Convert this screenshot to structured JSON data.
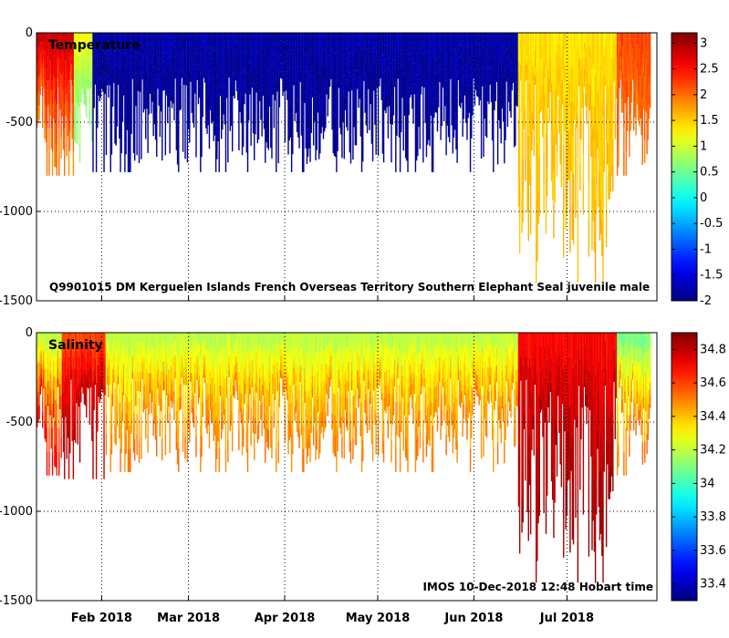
{
  "chart_data": [
    {
      "type": "heatmap",
      "name": "temperature",
      "title": "Temperature",
      "annotation": "Q9901015 DM Kerguelen Islands French Overseas Territory Southern Elephant Seal juvenile male",
      "ylim": [
        -1500,
        0
      ],
      "yticks": [
        0,
        -500,
        -1000,
        -1500
      ],
      "ytick_labels": [
        "0",
        "-500",
        "-1000",
        "-1500"
      ],
      "colorbar": {
        "range": [
          -2,
          3.2
        ],
        "ticks": [
          3,
          2.5,
          2,
          1.5,
          1,
          0.5,
          0,
          -0.5,
          -1,
          -1.5,
          -2
        ],
        "tick_labels": [
          "3",
          "2.5",
          "2",
          "1.5",
          "1",
          "0.5",
          "0",
          "-0.5",
          "-1",
          "-1.5",
          "-2"
        ]
      },
      "regimes": [
        {
          "start_day": 0,
          "end_day": 12,
          "surface_value": 2.8,
          "deep_value": 1.9,
          "max_depth": 800
        },
        {
          "start_day": 12,
          "end_day": 18,
          "surface_value": 1.2,
          "deep_value": 0.6,
          "max_depth": 820
        },
        {
          "start_day": 18,
          "end_day": 155,
          "surface_value": -1.8,
          "deep_value": -1.9,
          "max_depth": 780
        },
        {
          "start_day": 155,
          "end_day": 187,
          "surface_value": 1.4,
          "deep_value": 1.6,
          "max_depth": 1400
        },
        {
          "start_day": 187,
          "end_day": 198,
          "surface_value": 2.2,
          "deep_value": 2.0,
          "max_depth": 800
        }
      ]
    },
    {
      "type": "heatmap",
      "name": "salinity",
      "title": "Salinity",
      "annotation": "IMOS 10-Dec-2018 12:48 Hobart time",
      "ylim": [
        -1500,
        0
      ],
      "yticks": [
        0,
        -500,
        -1000,
        -1500
      ],
      "ytick_labels": [
        "0",
        "-500",
        "-1000",
        "-1500"
      ],
      "colorbar": {
        "range": [
          33.3,
          34.9
        ],
        "ticks": [
          34.8,
          34.6,
          34.4,
          34.2,
          34,
          33.8,
          33.6,
          33.4
        ],
        "tick_labels": [
          "34.8",
          "34.6",
          "34.4",
          "34.2",
          "34",
          "33.8",
          "33.6",
          "33.4"
        ]
      },
      "regimes": [
        {
          "start_day": 0,
          "end_day": 8,
          "surface_value": 34.2,
          "deep_value": 34.7,
          "max_depth": 800
        },
        {
          "start_day": 8,
          "end_day": 22,
          "surface_value": 34.6,
          "deep_value": 34.82,
          "max_depth": 820
        },
        {
          "start_day": 22,
          "end_day": 155,
          "surface_value": 34.2,
          "deep_value": 34.5,
          "max_depth": 780
        },
        {
          "start_day": 155,
          "end_day": 187,
          "surface_value": 34.7,
          "deep_value": 34.85,
          "max_depth": 1400
        },
        {
          "start_day": 187,
          "end_day": 198,
          "surface_value": 34.1,
          "deep_value": 34.5,
          "max_depth": 800
        }
      ]
    }
  ],
  "x_axis": {
    "start_date": "2018-01-11",
    "end_date": "2018-07-30",
    "total_days": 200,
    "ticks": [
      {
        "label": "Feb 2018",
        "day": 21
      },
      {
        "label": "Mar 2018",
        "day": 49
      },
      {
        "label": "Apr 2018",
        "day": 80
      },
      {
        "label": "May 2018",
        "day": 110
      },
      {
        "label": "Jun 2018",
        "day": 141
      },
      {
        "label": "Jul 2018",
        "day": 171
      }
    ]
  },
  "colors": {
    "background": "#ffffff",
    "axis": "#000000",
    "grid": "#000000"
  }
}
